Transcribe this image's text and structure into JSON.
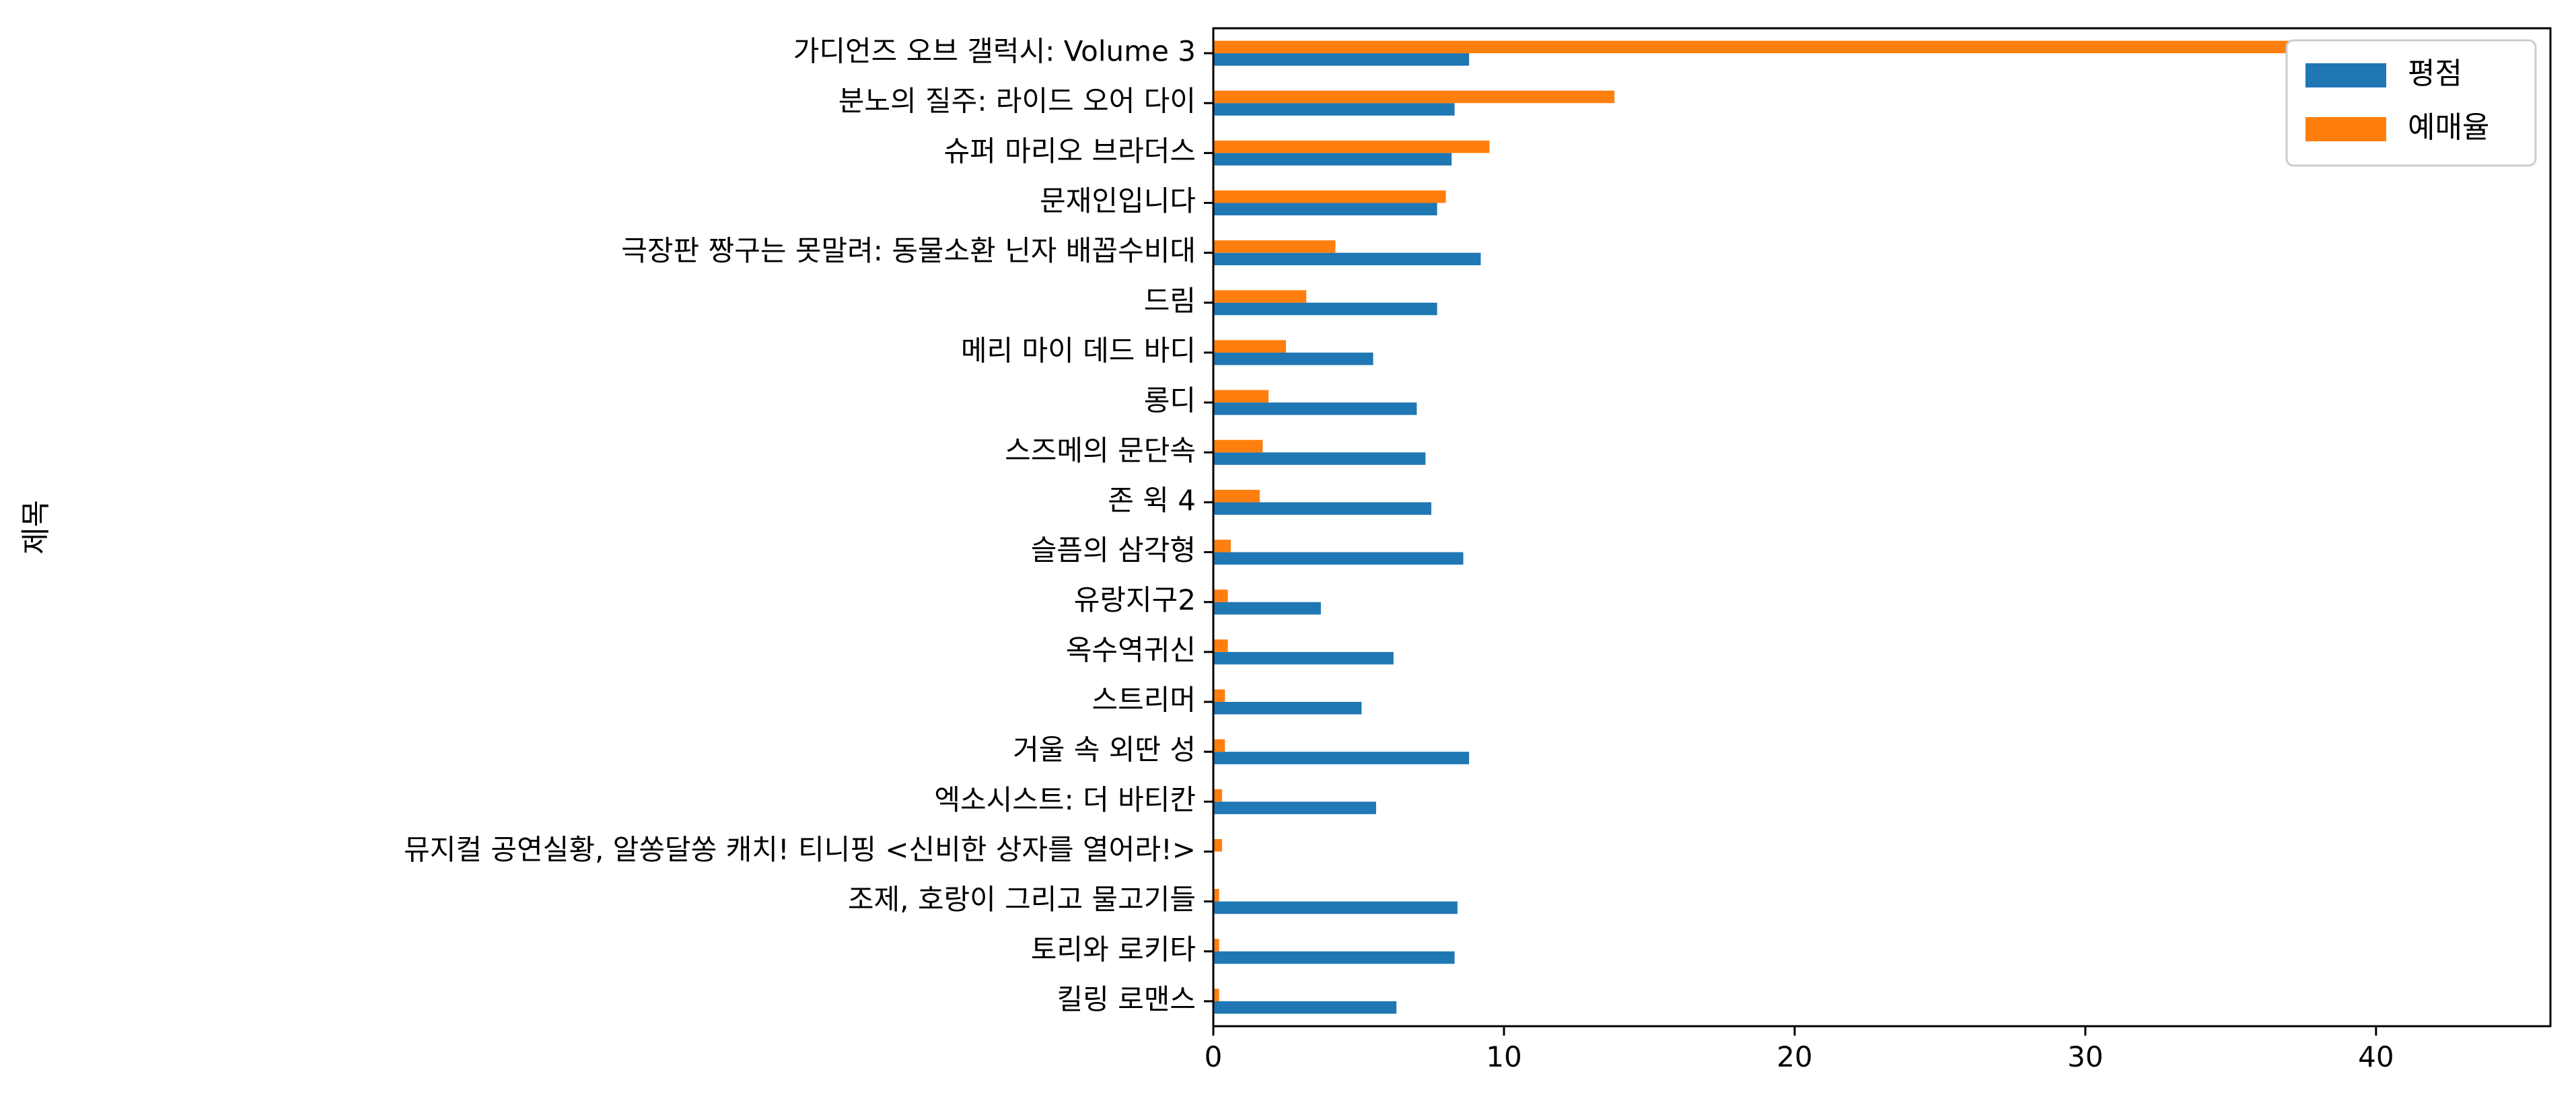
{
  "chart_data": {
    "type": "bar",
    "orientation": "horizontal",
    "ylabel": "제목",
    "categories": [
      "킬링 로맨스",
      "토리와 로키타",
      "조제, 호랑이 그리고 물고기들",
      "뮤지컬 공연실황, 알쏭달쏭 캐치! 티니핑 <신비한 상자를 열어라!>",
      "엑소시스트: 더 바티칸",
      "거울 속 외딴 성",
      "스트리머",
      "옥수역귀신",
      "유랑지구2",
      "슬픔의 삼각형",
      "존 윅 4",
      "스즈메의 문단속",
      "롱디",
      "메리 마이 데드 바디",
      "드림",
      "극장판 짱구는 못말려: 동물소환 닌자 배꼽수비대",
      "문재인입니다",
      "슈퍼 마리오 브라더스",
      "분노의 질주: 라이드 오어 다이",
      "가디언즈 오브 갤럭시: Volume 3"
    ],
    "series": [
      {
        "name": "평점",
        "color": "#1f77b4",
        "values": [
          6.3,
          8.3,
          8.4,
          0.0,
          5.6,
          8.8,
          5.1,
          6.2,
          3.7,
          8.6,
          7.5,
          7.3,
          7.0,
          5.5,
          7.7,
          9.2,
          7.7,
          8.2,
          8.3,
          8.8
        ]
      },
      {
        "name": "예매율",
        "color": "#ff7f0e",
        "values": [
          0.2,
          0.2,
          0.2,
          0.3,
          0.3,
          0.4,
          0.4,
          0.5,
          0.5,
          0.6,
          1.6,
          1.7,
          1.9,
          2.5,
          3.2,
          4.2,
          8.0,
          9.5,
          13.8,
          43.8
        ]
      }
    ],
    "xlim": [
      0,
      46
    ],
    "xticks": [
      "0",
      "10",
      "20",
      "30",
      "40"
    ],
    "xtick_values": [
      0,
      10,
      20,
      30,
      40
    ],
    "grid": false,
    "legend_position": "top-right"
  }
}
